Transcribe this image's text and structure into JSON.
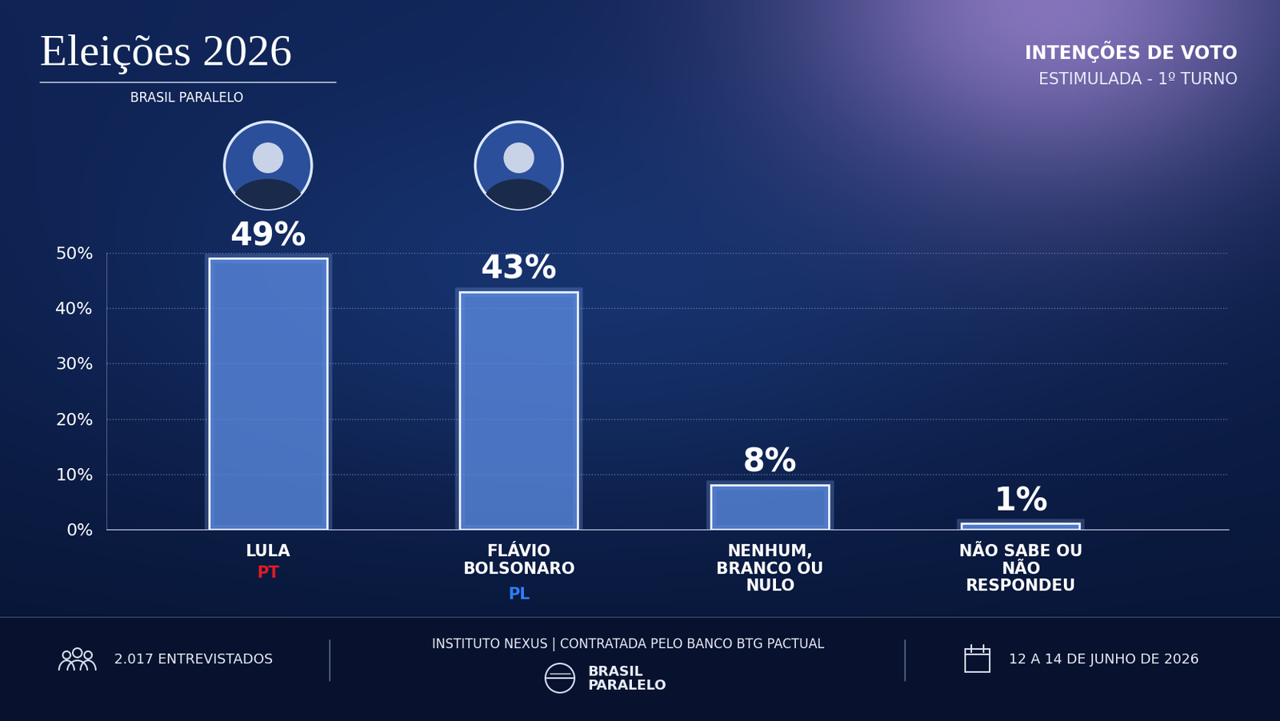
{
  "chart_data": {
    "type": "bar",
    "title": "Eleições 2026",
    "subtitle": "BRASIL PARALELO",
    "heading": "INTENÇÕES DE VOTO",
    "subheading": "ESTIMULADA - 1º TURNO",
    "categories": [
      "LULA",
      "FLÁVIO BOLSONARO",
      "NENHUM, BRANCO OU NULO",
      "NÃO SABE OU NÃO RESPONDEU"
    ],
    "party_labels": [
      "PT",
      "PL",
      null,
      null
    ],
    "values": [
      49,
      43,
      8,
      1
    ],
    "value_labels": [
      "49%",
      "43%",
      "8%",
      "1%"
    ],
    "data_labels": true,
    "color": "#5b8ae0",
    "ylim": [
      0,
      50
    ],
    "yticks": [
      {
        "value": 0,
        "label": "0%"
      },
      {
        "value": 10,
        "label": "10%"
      },
      {
        "value": 20,
        "label": "20%"
      },
      {
        "value": 30,
        "label": "30%"
      },
      {
        "value": 40,
        "label": "40%"
      },
      {
        "value": 50,
        "label": "50%"
      }
    ],
    "grid": true,
    "sample": "2.017 ENTREVISTADOS",
    "source": "INSTITUTO NEXUS | CONTRATADA PELO BANCO BTG PACTUAL",
    "logo": "BRASIL PARALELO",
    "dates": "12 A 14 DE JUNHO DE 2026"
  }
}
